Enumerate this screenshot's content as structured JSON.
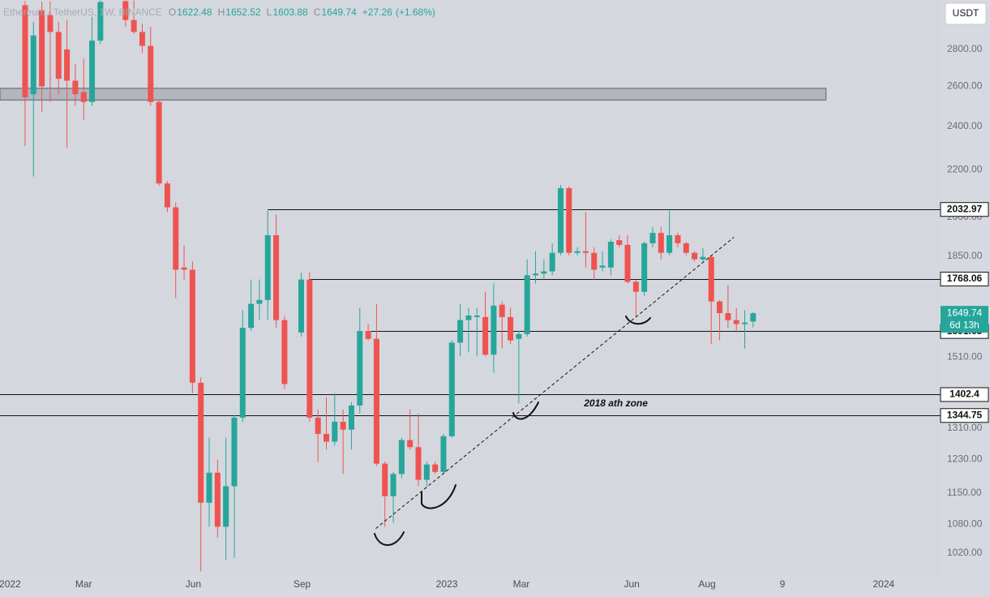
{
  "chart_data": {
    "type": "candlestick",
    "title": "Ethereum / TetherUS, 1W, BINANCE",
    "currency": "USDT",
    "ohlc_labels": [
      "O",
      "H",
      "L",
      "C"
    ],
    "change": {
      "value": 27.26,
      "label": "+27.26"
    },
    "change_pct": {
      "value": 1.68,
      "label": "(+1.68%)"
    },
    "countdown": "6d 13h",
    "up_color": "#26a69a",
    "down_color": "#ef5350",
    "log_scale": true,
    "grid": false,
    "x": [
      0,
      1,
      2,
      3,
      4,
      5,
      6,
      7,
      8,
      9,
      12,
      13,
      14,
      15,
      16,
      17,
      18,
      19,
      20,
      21,
      22,
      23,
      24,
      25,
      26,
      27,
      28,
      29,
      30,
      31,
      33,
      34,
      35,
      36,
      37,
      38,
      39,
      40,
      41,
      42,
      43,
      44,
      45,
      46,
      47,
      48,
      49,
      50,
      51,
      52,
      53,
      54,
      55,
      56,
      57,
      58,
      59,
      60,
      61,
      62,
      63,
      64,
      65,
      66,
      67,
      68,
      69,
      70,
      71,
      72,
      73,
      74,
      75,
      76,
      77,
      78,
      79,
      80,
      81,
      82,
      83,
      84,
      85,
      86,
      87
    ],
    "open": [
      3060,
      2560,
      3030,
      3000,
      2900,
      2800,
      2630,
      2570,
      2520,
      2850,
      3085,
      2970,
      2900,
      2820,
      2520,
      2140,
      2040,
      1808,
      1800,
      1435,
      1128,
      1198,
      1075,
      1166,
      1338,
      1602,
      1681,
      1694,
      1929,
      1627,
      1587,
      1765,
      1338,
      1295,
      1275,
      1327,
      1306,
      1371,
      1592,
      1567,
      1220,
      1143,
      1195,
      1279,
      1261,
      1181,
      1218,
      1200,
      1289,
      1555,
      1627,
      1637,
      1637,
      1518,
      1678,
      1637,
      1567,
      1582,
      1780,
      1786,
      1794,
      1862,
      2120,
      1862,
      1868,
      1862,
      1808,
      1808,
      1910,
      1892,
      1757,
      1722,
      1898,
      1938,
      1862,
      1929,
      1898,
      1862,
      1838,
      1847,
      1689,
      1650,
      1627,
      1614,
      1622.48
    ],
    "high": [
      3085,
      2960,
      3080,
      3085,
      2960,
      2970,
      2720,
      2750,
      2990,
      3090,
      3090,
      3090,
      2950,
      2930,
      2530,
      2150,
      2060,
      1890,
      1830,
      1450,
      1285,
      1230,
      1285,
      1345,
      1660,
      1765,
      1765,
      2026,
      2010,
      1640,
      1790,
      1790,
      1360,
      1393,
      1405,
      1360,
      1380,
      1667,
      1614,
      1681,
      1225,
      1200,
      1285,
      1360,
      1349,
      1225,
      1225,
      1295,
      1562,
      1681,
      1667,
      1667,
      1722,
      1751,
      1690,
      1667,
      1592,
      1838,
      1868,
      1838,
      1898,
      2134,
      2127,
      1883,
      2020,
      1883,
      1868,
      1913,
      1929,
      1929,
      1765,
      1904,
      1961,
      1961,
      2026,
      1938,
      1904,
      1868,
      1880,
      1853,
      1694,
      1745,
      1667,
      1660,
      1652.52
    ],
    "low": [
      2307,
      2170,
      2470,
      2520,
      2560,
      2300,
      2500,
      2430,
      2500,
      2830,
      2930,
      2890,
      2780,
      2500,
      2130,
      2020,
      1700,
      1765,
      1405,
      983,
      1075,
      1052,
      1005,
      1010,
      1327,
      1592,
      1627,
      1627,
      1602,
      1417,
      1574,
      1327,
      1224,
      1255,
      1265,
      1195,
      1255,
      1349,
      1562,
      1214,
      1075,
      1083,
      1185,
      1255,
      1166,
      1166,
      1195,
      1195,
      1285,
      1513,
      1525,
      1513,
      1513,
      1464,
      1537,
      1550,
      1377,
      1574,
      1751,
      1765,
      1780,
      1853,
      1853,
      1853,
      1808,
      1765,
      1794,
      1780,
      1883,
      1751,
      1637,
      1708,
      1883,
      1838,
      1853,
      1883,
      1853,
      1830,
      1830,
      1550,
      1562,
      1602,
      1587,
      1537,
      1603.88
    ],
    "close": [
      2544,
      2880,
      2600,
      2900,
      2640,
      2630,
      2560,
      2520,
      2850,
      3080,
      2970,
      2900,
      2820,
      2520,
      2140,
      2040,
      1800,
      1800,
      1435,
      1128,
      1198,
      1075,
      1166,
      1338,
      1602,
      1681,
      1694,
      1929,
      1627,
      1431,
      1765,
      1338,
      1295,
      1275,
      1327,
      1306,
      1371,
      1592,
      1567,
      1220,
      1143,
      1195,
      1279,
      1261,
      1181,
      1218,
      1200,
      1289,
      1555,
      1627,
      1642,
      1642,
      1518,
      1675,
      1637,
      1562,
      1582,
      1780,
      1786,
      1794,
      1862,
      2120,
      1862,
      1868,
      1862,
      1800,
      1815,
      1904,
      1892,
      1757,
      1722,
      1898,
      1938,
      1862,
      1929,
      1898,
      1862,
      1838,
      1847,
      1689,
      1650,
      1627,
      1614,
      1619,
      1649.74
    ],
    "xlim": [
      -3,
      109.4
    ],
    "xticks": [
      {
        "value": -1.8,
        "label": "2022"
      },
      {
        "value": 7.0,
        "label": "Mar"
      },
      {
        "value": 20.1,
        "label": "Jun"
      },
      {
        "value": 33.1,
        "label": "Sep"
      },
      {
        "value": 50.4,
        "label": "2023"
      },
      {
        "value": 59.3,
        "label": "Mar"
      },
      {
        "value": 72.5,
        "label": "Jun"
      },
      {
        "value": 81.5,
        "label": "Aug"
      },
      {
        "value": 90.5,
        "label": "9"
      },
      {
        "value": 102.6,
        "label": "2024"
      }
    ],
    "ylim": [
      974,
      3092
    ],
    "yticks": [
      {
        "value": 2800,
        "label": "2800.00"
      },
      {
        "value": 2600,
        "label": "2600.00"
      },
      {
        "value": 2400,
        "label": "2400.00"
      },
      {
        "value": 2200,
        "label": "2200.00"
      },
      {
        "value": 2000,
        "label": "2000.00"
      },
      {
        "value": 1850,
        "label": "1850.00"
      },
      {
        "value": 1510,
        "label": "1510.00"
      },
      {
        "value": 1310,
        "label": "1310.00"
      },
      {
        "value": 1230,
        "label": "1230.00"
      },
      {
        "value": 1150,
        "label": "1150.00"
      },
      {
        "value": 1080,
        "label": "1080.00"
      },
      {
        "value": 1020,
        "label": "1020.00"
      }
    ],
    "levels": [
      {
        "value": 2032.97,
        "start": 29
      },
      {
        "value": 1768.06,
        "start": 34
      },
      {
        "value": 1591.63,
        "start": 41
      },
      {
        "value": 1402.4,
        "start": -3
      },
      {
        "value": 1344.75,
        "start": -3
      }
    ],
    "zone": {
      "low": 2530,
      "high": 2590,
      "start": -3,
      "end": 95.7
    },
    "trendline": {
      "x": [
        41.9,
        84.7
      ],
      "y": [
        1071,
        1921
      ]
    },
    "annotations": [
      {
        "text": "2018 ath zone",
        "x": 70.6,
        "y": 1376
      }
    ]
  }
}
